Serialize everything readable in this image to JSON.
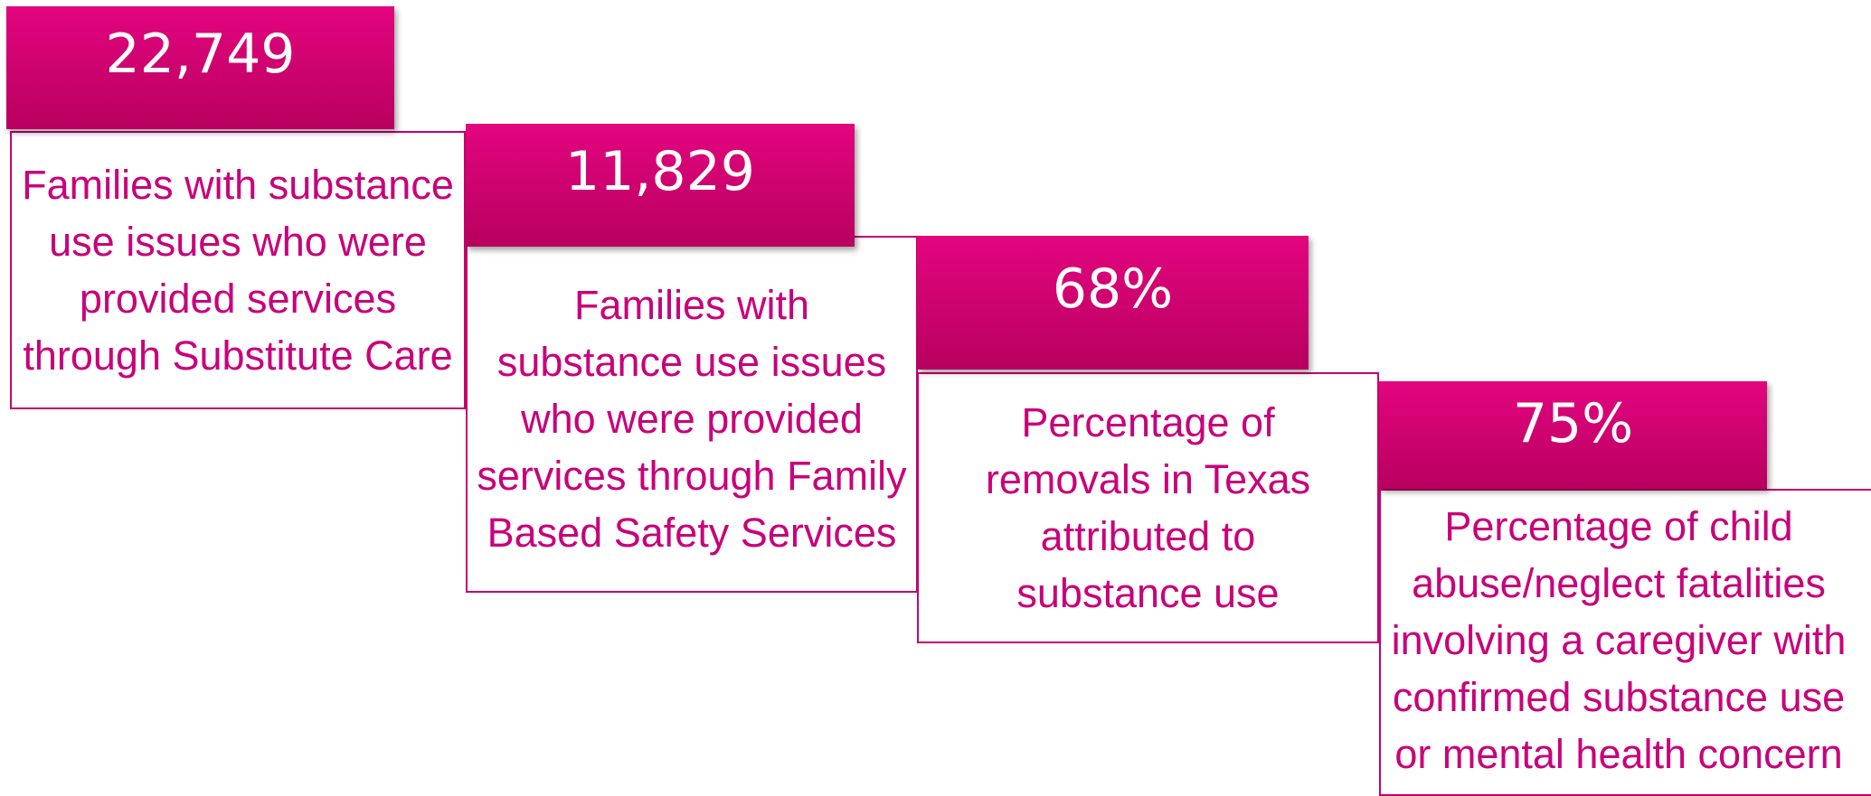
{
  "cards": [
    {
      "value": "22,749",
      "description": "Families with substance use issues who were provided services through Substitute Care"
    },
    {
      "value": "11,829",
      "description": "Families with substance use issues who were provided services through Family Based Safety Services"
    },
    {
      "value": "68%",
      "description": "Percentage of removals in Texas attributed to substance use"
    },
    {
      "value": "75%",
      "description": "Percentage of child abuse/neglect fatalities involving a caregiver with confirmed substance use or mental health concern"
    }
  ]
}
